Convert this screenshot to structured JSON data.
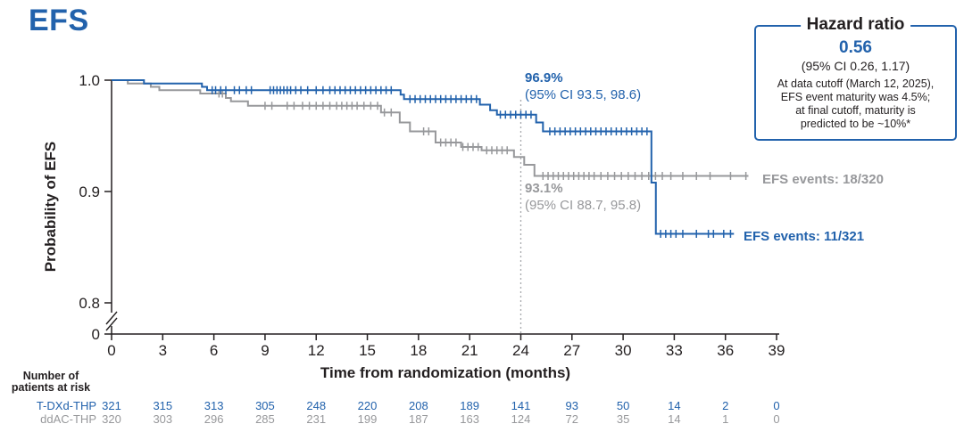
{
  "title": "EFS",
  "colors": {
    "blue": "#2262AC",
    "gray": "#97989B",
    "axis": "#231F20",
    "dotted_line": "#A7A9AC"
  },
  "hazard_box": {
    "title": "Hazard ratio",
    "value": "0.56",
    "ci": "(95% CI 0.26, 1.17)",
    "note_lines": [
      "At data cutoff (March 12, 2025),",
      "EFS event maturity was 4.5%;",
      "at final cutoff, maturity is",
      "predicted to be ~10%*"
    ]
  },
  "chart_data": {
    "type": "line",
    "subtype": "kaplan-meier",
    "title": "EFS",
    "xlabel": "Time from randomization (months)",
    "ylabel": "Probability of EFS",
    "x_ticks": [
      0,
      3,
      6,
      9,
      12,
      15,
      18,
      21,
      24,
      27,
      30,
      33,
      36,
      39
    ],
    "y_ticks": [
      {
        "label": "1.0",
        "prob": 1.0
      },
      {
        "label": "0.9",
        "prob": 0.9
      },
      {
        "label": "0.8",
        "prob": 0.8
      },
      {
        "label": "0",
        "prob": 0
      }
    ],
    "axis_break": true,
    "ylim_shown": [
      0.8,
      1.0
    ],
    "xlim": [
      0,
      39
    ],
    "grid": false,
    "dotted_line_month": 24,
    "series": [
      {
        "name": "T-DXd-THP",
        "color": "#2262AC",
        "events_label": "EFS events: 11/321",
        "landmark": {
          "month": 24,
          "label": "96.9%",
          "ci": "(95% CI 93.5, 98.6)"
        },
        "start": [
          0,
          1.0
        ],
        "steps": [
          [
            1.9,
            0.997
          ],
          [
            5.3,
            0.994
          ],
          [
            5.6,
            0.991
          ],
          [
            16.95,
            0.987
          ],
          [
            17.15,
            0.983
          ],
          [
            21.6,
            0.978
          ],
          [
            22.2,
            0.973
          ],
          [
            22.6,
            0.969
          ],
          [
            24.9,
            0.962
          ],
          [
            25.3,
            0.954
          ],
          [
            31.66,
            0.908
          ],
          [
            31.92,
            0.862
          ]
        ],
        "end_month": 36.5,
        "censor_months": [
          5.9,
          6.1,
          6.4,
          6.7,
          7.2,
          7.5,
          7.9,
          8.2,
          9.3,
          9.5,
          9.7,
          9.9,
          10.1,
          10.3,
          10.5,
          10.8,
          11.1,
          11.5,
          12.0,
          12.4,
          12.8,
          13.1,
          13.4,
          13.7,
          14.0,
          14.3,
          14.6,
          14.9,
          15.2,
          15.5,
          15.8,
          16.1,
          16.4,
          17.5,
          17.8,
          18.1,
          18.4,
          18.7,
          19.0,
          19.3,
          19.6,
          19.9,
          20.2,
          20.5,
          20.8,
          21.1,
          21.4,
          22.8,
          23.1,
          23.4,
          23.7,
          24.0,
          24.3,
          24.6,
          25.7,
          26.0,
          26.3,
          26.6,
          26.9,
          27.2,
          27.5,
          27.8,
          28.1,
          28.4,
          28.7,
          29.0,
          29.3,
          29.6,
          29.9,
          30.2,
          30.5,
          30.8,
          31.1,
          31.4,
          32.2,
          32.5,
          32.8,
          33.1,
          33.5,
          34.3,
          35.0,
          35.3,
          35.9,
          36.3
        ]
      },
      {
        "name": "ddAC-THP",
        "color": "#97989B",
        "events_label": "EFS events: 18/320",
        "landmark": {
          "month": 24,
          "label": "93.1%",
          "ci": "(95% CI 88.7, 95.8)"
        },
        "start": [
          0,
          1.0
        ],
        "steps": [
          [
            0.95,
            0.997
          ],
          [
            2.3,
            0.994
          ],
          [
            2.8,
            0.991
          ],
          [
            5.2,
            0.988
          ],
          [
            6.7,
            0.984
          ],
          [
            7.0,
            0.981
          ],
          [
            8.0,
            0.977
          ],
          [
            15.8,
            0.971
          ],
          [
            16.9,
            0.962
          ],
          [
            17.5,
            0.954
          ],
          [
            19.0,
            0.944
          ],
          [
            20.5,
            0.94
          ],
          [
            21.7,
            0.937
          ],
          [
            23.6,
            0.931
          ],
          [
            24.2,
            0.924
          ],
          [
            24.8,
            0.914
          ]
        ],
        "end_month": 37.35,
        "censor_months": [
          6.3,
          6.5,
          9.0,
          9.4,
          10.3,
          10.7,
          11.2,
          11.6,
          12.0,
          12.4,
          12.8,
          13.2,
          13.5,
          13.8,
          14.1,
          14.4,
          14.8,
          15.2,
          15.6,
          16.0,
          16.4,
          18.3,
          18.6,
          19.3,
          19.6,
          19.9,
          20.2,
          20.6,
          20.9,
          21.2,
          21.5,
          22.0,
          22.3,
          22.6,
          22.9,
          23.2,
          25.3,
          25.6,
          25.9,
          26.2,
          26.5,
          26.8,
          27.1,
          27.4,
          27.7,
          28.0,
          28.3,
          28.7,
          29.1,
          29.5,
          29.9,
          30.3,
          30.7,
          31.1,
          31.5,
          31.9,
          32.3,
          32.8,
          33.5,
          34.3,
          35.1,
          36.3,
          37.2
        ]
      }
    ]
  },
  "risk_table": {
    "header_lines": [
      "Number of",
      "patients at risk"
    ],
    "rows": [
      {
        "label": "T-DXd-THP",
        "color": "#2262AC",
        "values": [
          "321",
          "315",
          "313",
          "305",
          "248",
          "220",
          "208",
          "189",
          "141",
          "93",
          "50",
          "14",
          "2",
          "0"
        ]
      },
      {
        "label": "ddAC-THP",
        "color": "#97989B",
        "values": [
          "320",
          "303",
          "296",
          "285",
          "231",
          "199",
          "187",
          "163",
          "124",
          "72",
          "35",
          "14",
          "1",
          "0"
        ]
      }
    ]
  }
}
